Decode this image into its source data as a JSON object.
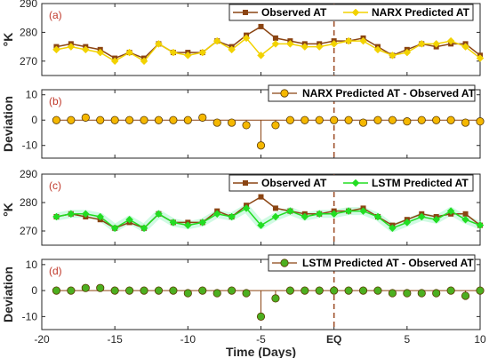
{
  "chart_data": [
    {
      "type": "line",
      "panel_tag": "(a)",
      "ylabel": "°K",
      "ylim": [
        265,
        290
      ],
      "yticks": [
        270,
        280,
        290
      ],
      "x": [
        -19,
        -18,
        -17,
        -16,
        -15,
        -14,
        -13,
        -12,
        -11,
        -10,
        -9,
        -8,
        -7,
        -6,
        -5,
        -4,
        -3,
        -2,
        -1,
        0,
        1,
        2,
        3,
        4,
        5,
        6,
        7,
        8,
        9,
        10
      ],
      "series": [
        {
          "name": "Observed AT",
          "color": "#8b4513",
          "marker": "square",
          "values": [
            275,
            276,
            275,
            274,
            271,
            273,
            271,
            276,
            273,
            273,
            273,
            277,
            275,
            279,
            282,
            278,
            277,
            276,
            276,
            277,
            277,
            278,
            275,
            272,
            274,
            276,
            275,
            276,
            276,
            272
          ]
        },
        {
          "name": "NARX Predicted AT",
          "color": "#f2d200",
          "marker": "diamond",
          "values": [
            274,
            275,
            274,
            273,
            270,
            273,
            270,
            276,
            273,
            272,
            273,
            277,
            274,
            278,
            272,
            276,
            276,
            275,
            275,
            276,
            277,
            277,
            274,
            272,
            273,
            276,
            276,
            277,
            275,
            271
          ]
        }
      ],
      "legend": "top-right"
    },
    {
      "type": "line",
      "panel_tag": "(b)",
      "ylabel": "Deviation",
      "ylim": [
        -15,
        12
      ],
      "yticks": [
        -10,
        0,
        10
      ],
      "x": [
        -19,
        -18,
        -17,
        -16,
        -15,
        -14,
        -13,
        -12,
        -11,
        -10,
        -9,
        -8,
        -7,
        -6,
        -5,
        -4,
        -3,
        -2,
        -1,
        0,
        1,
        2,
        3,
        4,
        5,
        6,
        7,
        8,
        9,
        10
      ],
      "series": [
        {
          "name": "NARX Predicted AT - Observed AT",
          "color": "#f5b800",
          "marker": "circle",
          "values": [
            0,
            0,
            1,
            0,
            0,
            0,
            0,
            0,
            0,
            0,
            1,
            -1,
            -1,
            -2,
            -10,
            -2,
            0,
            0,
            0,
            0,
            0,
            -1,
            0,
            0,
            -0.5,
            0,
            0,
            0,
            -1,
            -0.5
          ]
        }
      ],
      "legend": "top-right"
    },
    {
      "type": "line",
      "panel_tag": "(c)",
      "ylabel": "°K",
      "ylim": [
        265,
        290
      ],
      "yticks": [
        270,
        280,
        290
      ],
      "x": [
        -19,
        -18,
        -17,
        -16,
        -15,
        -14,
        -13,
        -12,
        -11,
        -10,
        -9,
        -8,
        -7,
        -6,
        -5,
        -4,
        -3,
        -2,
        -1,
        0,
        1,
        2,
        3,
        4,
        5,
        6,
        7,
        8,
        9,
        10
      ],
      "series": [
        {
          "name": "Observed AT",
          "color": "#8b4513",
          "marker": "square",
          "values": [
            275,
            276,
            275,
            274,
            271,
            273,
            271,
            276,
            273,
            273,
            273,
            277,
            275,
            279,
            282,
            278,
            277,
            276,
            276,
            277,
            277,
            278,
            275,
            272,
            274,
            276,
            275,
            276,
            276,
            272
          ]
        },
        {
          "name": "LSTM Predicted AT",
          "color": "#22dd22",
          "marker": "diamond",
          "values": [
            275,
            276,
            276,
            275,
            271,
            274,
            271,
            276,
            273,
            272,
            273,
            276,
            275,
            278,
            272,
            275,
            277,
            275,
            276,
            276,
            277,
            277,
            275,
            271,
            273,
            275,
            274,
            277,
            274,
            272
          ]
        }
      ],
      "legend": "top-right"
    },
    {
      "type": "line",
      "panel_tag": "(d)",
      "ylabel": "Deviation",
      "ylim": [
        -15,
        12
      ],
      "yticks": [
        -10,
        0,
        10
      ],
      "xlabel": "Time (Days)",
      "xlim": [
        -20,
        10
      ],
      "xticks": [
        "-20",
        "-15",
        "-10",
        "-5",
        "EQ",
        "5",
        "10"
      ],
      "x": [
        -19,
        -18,
        -17,
        -16,
        -15,
        -14,
        -13,
        -12,
        -11,
        -10,
        -9,
        -8,
        -7,
        -6,
        -5,
        -4,
        -3,
        -2,
        -1,
        0,
        1,
        2,
        3,
        4,
        5,
        6,
        7,
        8,
        9,
        10
      ],
      "series": [
        {
          "name": "LSTM Predicted AT - Observed AT",
          "color": "#4caf20",
          "marker": "circle",
          "values": [
            0,
            0,
            1,
            1,
            0,
            0,
            0,
            0,
            0,
            -1,
            0,
            -1,
            0,
            -1,
            -10,
            -3,
            0,
            0,
            0,
            0,
            0,
            0,
            0,
            -1,
            -1,
            -1,
            -1,
            0,
            -2,
            0
          ]
        }
      ],
      "legend": "top-right"
    }
  ],
  "xaxis": {
    "xlim": [
      -20,
      10
    ],
    "ticks": [
      -20,
      -15,
      -10,
      -5,
      0,
      5,
      10
    ],
    "tick_labels": [
      "-20",
      "-15",
      "-10",
      "-5",
      "EQ",
      "5",
      "10"
    ],
    "label": "Time (Days)"
  },
  "eq_marker": {
    "x": 0,
    "color": "#a0522d",
    "style": "dashed"
  }
}
